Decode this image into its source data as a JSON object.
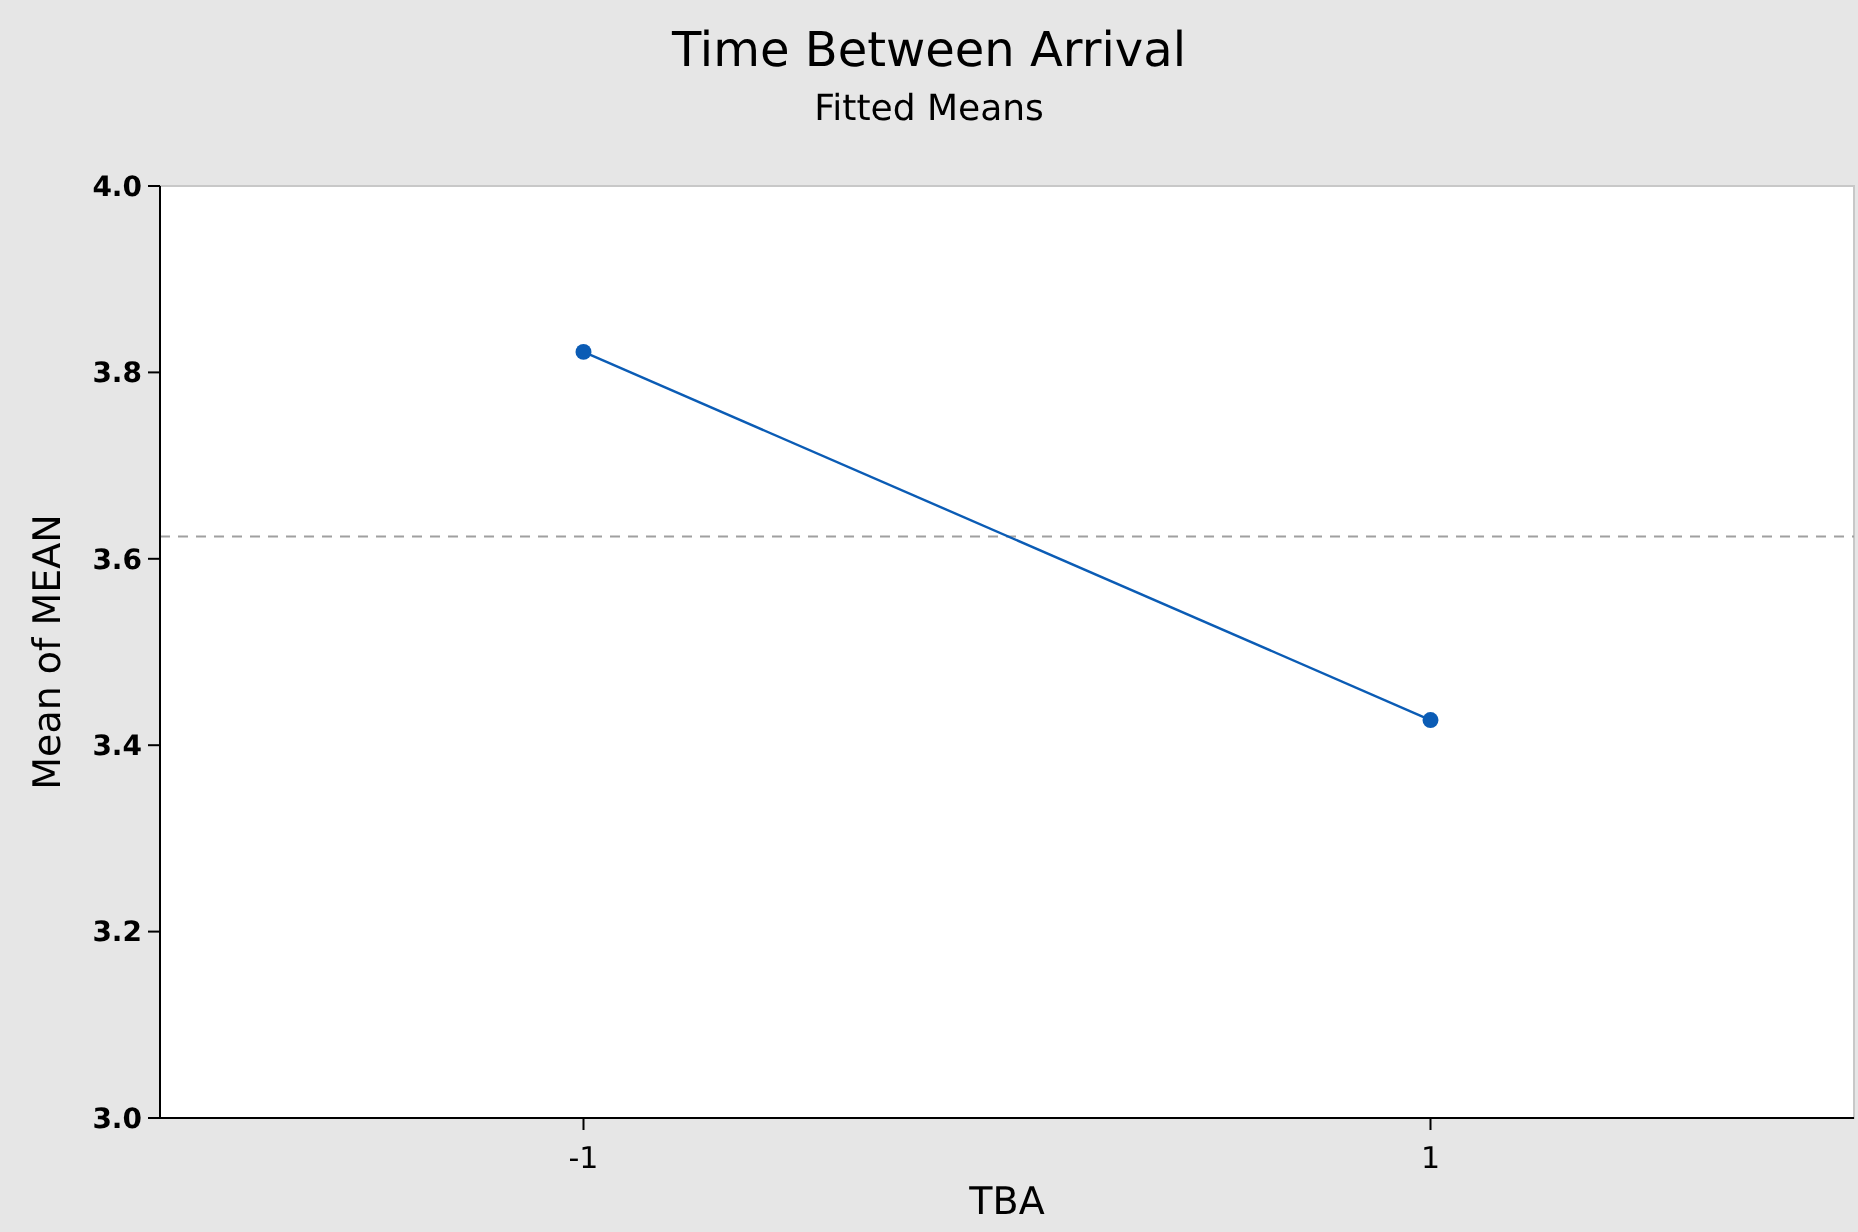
{
  "chart_data": {
    "type": "line",
    "title": "Time Between Arrival",
    "subtitle": "Fitted Means",
    "xlabel": "TBA",
    "ylabel": "Mean of MEAN",
    "categories": [
      "-1",
      "1"
    ],
    "series": [
      {
        "color": "#0b5cb5",
        "values": [
          3.822,
          3.427
        ]
      }
    ],
    "ylim": [
      3.0,
      4.0
    ],
    "yticks": [
      {
        "value": 3.0,
        "label": "3.0"
      },
      {
        "value": 3.2,
        "label": "3.2"
      },
      {
        "value": 3.4,
        "label": "3.4"
      },
      {
        "value": 3.6,
        "label": "3.6"
      },
      {
        "value": 3.8,
        "label": "3.8"
      },
      {
        "value": 4.0,
        "label": "4.0"
      }
    ],
    "ref_lines": [
      {
        "axis": "y",
        "value": 3.624,
        "color": "#a0a0a0",
        "line_style": "dashed"
      }
    ],
    "marker": "circle",
    "line_style": "solid",
    "grid": false
  }
}
